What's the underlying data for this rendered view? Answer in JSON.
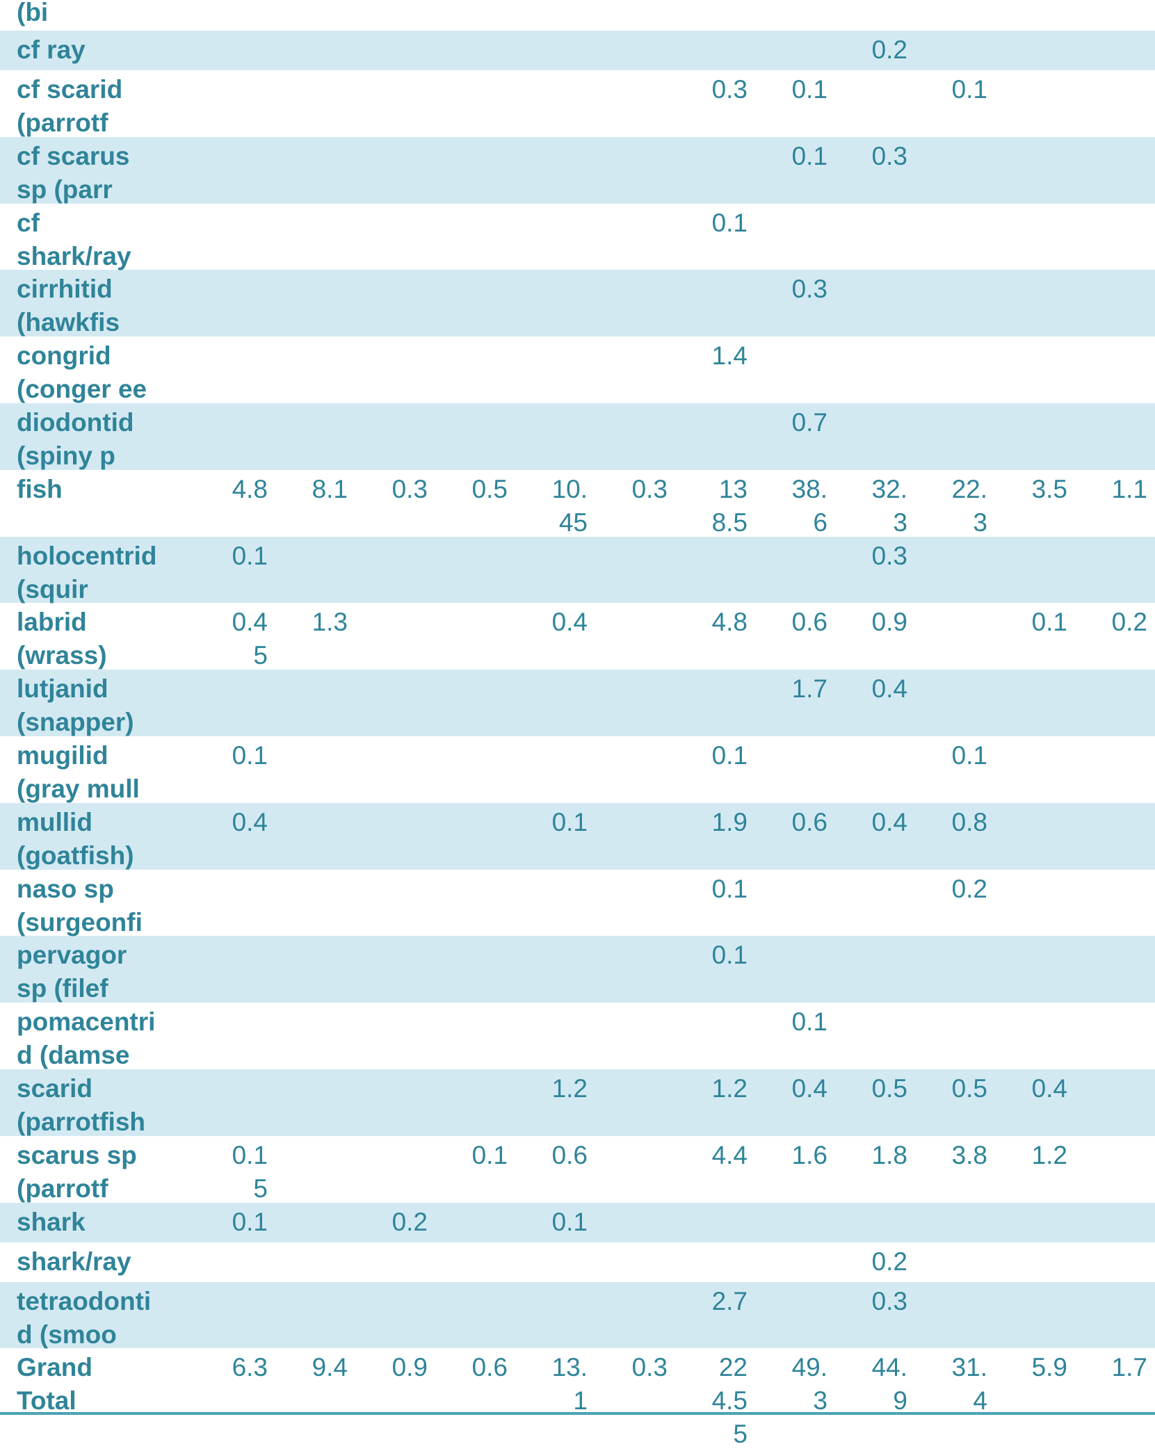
{
  "colors": {
    "text": "#2f8499",
    "band": "#d3e9f2",
    "rule": "#4aa3b5"
  },
  "rows": [
    {
      "label": "(bi",
      "values": [
        "",
        "",
        "",
        "",
        "",
        "",
        "",
        "",
        "",
        "",
        "",
        ""
      ]
    },
    {
      "label": "cf ray",
      "values": [
        "",
        "",
        "",
        "",
        "",
        "",
        "",
        "",
        "0.2",
        "",
        "",
        ""
      ]
    },
    {
      "label": "cf scarid\n(parrotf",
      "values": [
        "",
        "",
        "",
        "",
        "",
        "",
        "0.3",
        "0.1",
        "",
        "0.1",
        "",
        ""
      ]
    },
    {
      "label": "cf scarus\nsp (parr",
      "values": [
        "",
        "",
        "",
        "",
        "",
        "",
        "",
        "0.1",
        "0.3",
        "",
        "",
        ""
      ]
    },
    {
      "label": "cf\nshark/ray",
      "values": [
        "",
        "",
        "",
        "",
        "",
        "",
        "0.1",
        "",
        "",
        "",
        "",
        ""
      ]
    },
    {
      "label": "cirrhitid\n(hawkfis",
      "values": [
        "",
        "",
        "",
        "",
        "",
        "",
        "",
        "0.3",
        "",
        "",
        "",
        ""
      ]
    },
    {
      "label": "congrid\n(conger ee",
      "values": [
        "",
        "",
        "",
        "",
        "",
        "",
        "1.4",
        "",
        "",
        "",
        "",
        ""
      ]
    },
    {
      "label": "diodontid\n(spiny p",
      "values": [
        "",
        "",
        "",
        "",
        "",
        "",
        "",
        "0.7",
        "",
        "",
        "",
        ""
      ]
    },
    {
      "label": "fish",
      "values": [
        "4.8",
        "8.1",
        "0.3",
        "0.5",
        "10.45",
        "0.3",
        "138.5",
        "38.6",
        "32.3",
        "22.3",
        "3.5",
        "1.1"
      ]
    },
    {
      "label": "holocentrid\n(squir",
      "values": [
        "0.1",
        "",
        "",
        "",
        "",
        "",
        "",
        "",
        "0.3",
        "",
        "",
        ""
      ]
    },
    {
      "label": "labrid\n(wrass)",
      "values": [
        "0.45",
        "1.3",
        "",
        "",
        "0.4",
        "",
        "4.8",
        "0.6",
        "0.9",
        "",
        "0.1",
        "0.2"
      ]
    },
    {
      "label": "lutjanid\n(snapper)",
      "values": [
        "",
        "",
        "",
        "",
        "",
        "",
        "",
        "1.7",
        "0.4",
        "",
        "",
        ""
      ]
    },
    {
      "label": "mugilid\n(gray mull",
      "values": [
        "0.1",
        "",
        "",
        "",
        "",
        "",
        "0.1",
        "",
        "",
        "0.1",
        "",
        ""
      ]
    },
    {
      "label": "mullid\n(goatfish)",
      "values": [
        "0.4",
        "",
        "",
        "",
        "0.1",
        "",
        "1.9",
        "0.6",
        "0.4",
        "0.8",
        "",
        ""
      ]
    },
    {
      "label": "naso sp\n(surgeonfi",
      "values": [
        "",
        "",
        "",
        "",
        "",
        "",
        "0.1",
        "",
        "",
        "0.2",
        "",
        ""
      ]
    },
    {
      "label": "pervagor\nsp (filef",
      "values": [
        "",
        "",
        "",
        "",
        "",
        "",
        "0.1",
        "",
        "",
        "",
        "",
        ""
      ]
    },
    {
      "label": "pomacentri\nd (damse",
      "values": [
        "",
        "",
        "",
        "",
        "",
        "",
        "",
        "0.1",
        "",
        "",
        "",
        ""
      ]
    },
    {
      "label": "scarid\n(parrotfish",
      "values": [
        "",
        "",
        "",
        "",
        "1.2",
        "",
        "1.2",
        "0.4",
        "0.5",
        "0.5",
        "0.4",
        ""
      ]
    },
    {
      "label": "scarus sp\n(parrotf",
      "values": [
        "0.15",
        "",
        "",
        "0.1",
        "0.6",
        "",
        "4.4",
        "1.6",
        "1.8",
        "3.8",
        "1.2",
        ""
      ]
    },
    {
      "label": "shark",
      "values": [
        "0.1",
        "",
        "0.2",
        "",
        "0.1",
        "",
        "",
        "",
        "",
        "",
        "",
        ""
      ]
    },
    {
      "label": "shark/ray",
      "values": [
        "",
        "",
        "",
        "",
        "",
        "",
        "",
        "",
        "0.2",
        "",
        "",
        ""
      ]
    },
    {
      "label": "tetraodonti\nd (smoo",
      "values": [
        "",
        "",
        "",
        "",
        "",
        "",
        "2.7",
        "",
        "0.3",
        "",
        "",
        ""
      ]
    },
    {
      "label": "Grand\nTotal",
      "values": [
        "6.3",
        "9.4",
        "0.9",
        "0.6",
        "13.1",
        "0.3",
        "224.55",
        "49.3",
        "44.9",
        "31.4",
        "5.9",
        "1.7"
      ]
    }
  ]
}
